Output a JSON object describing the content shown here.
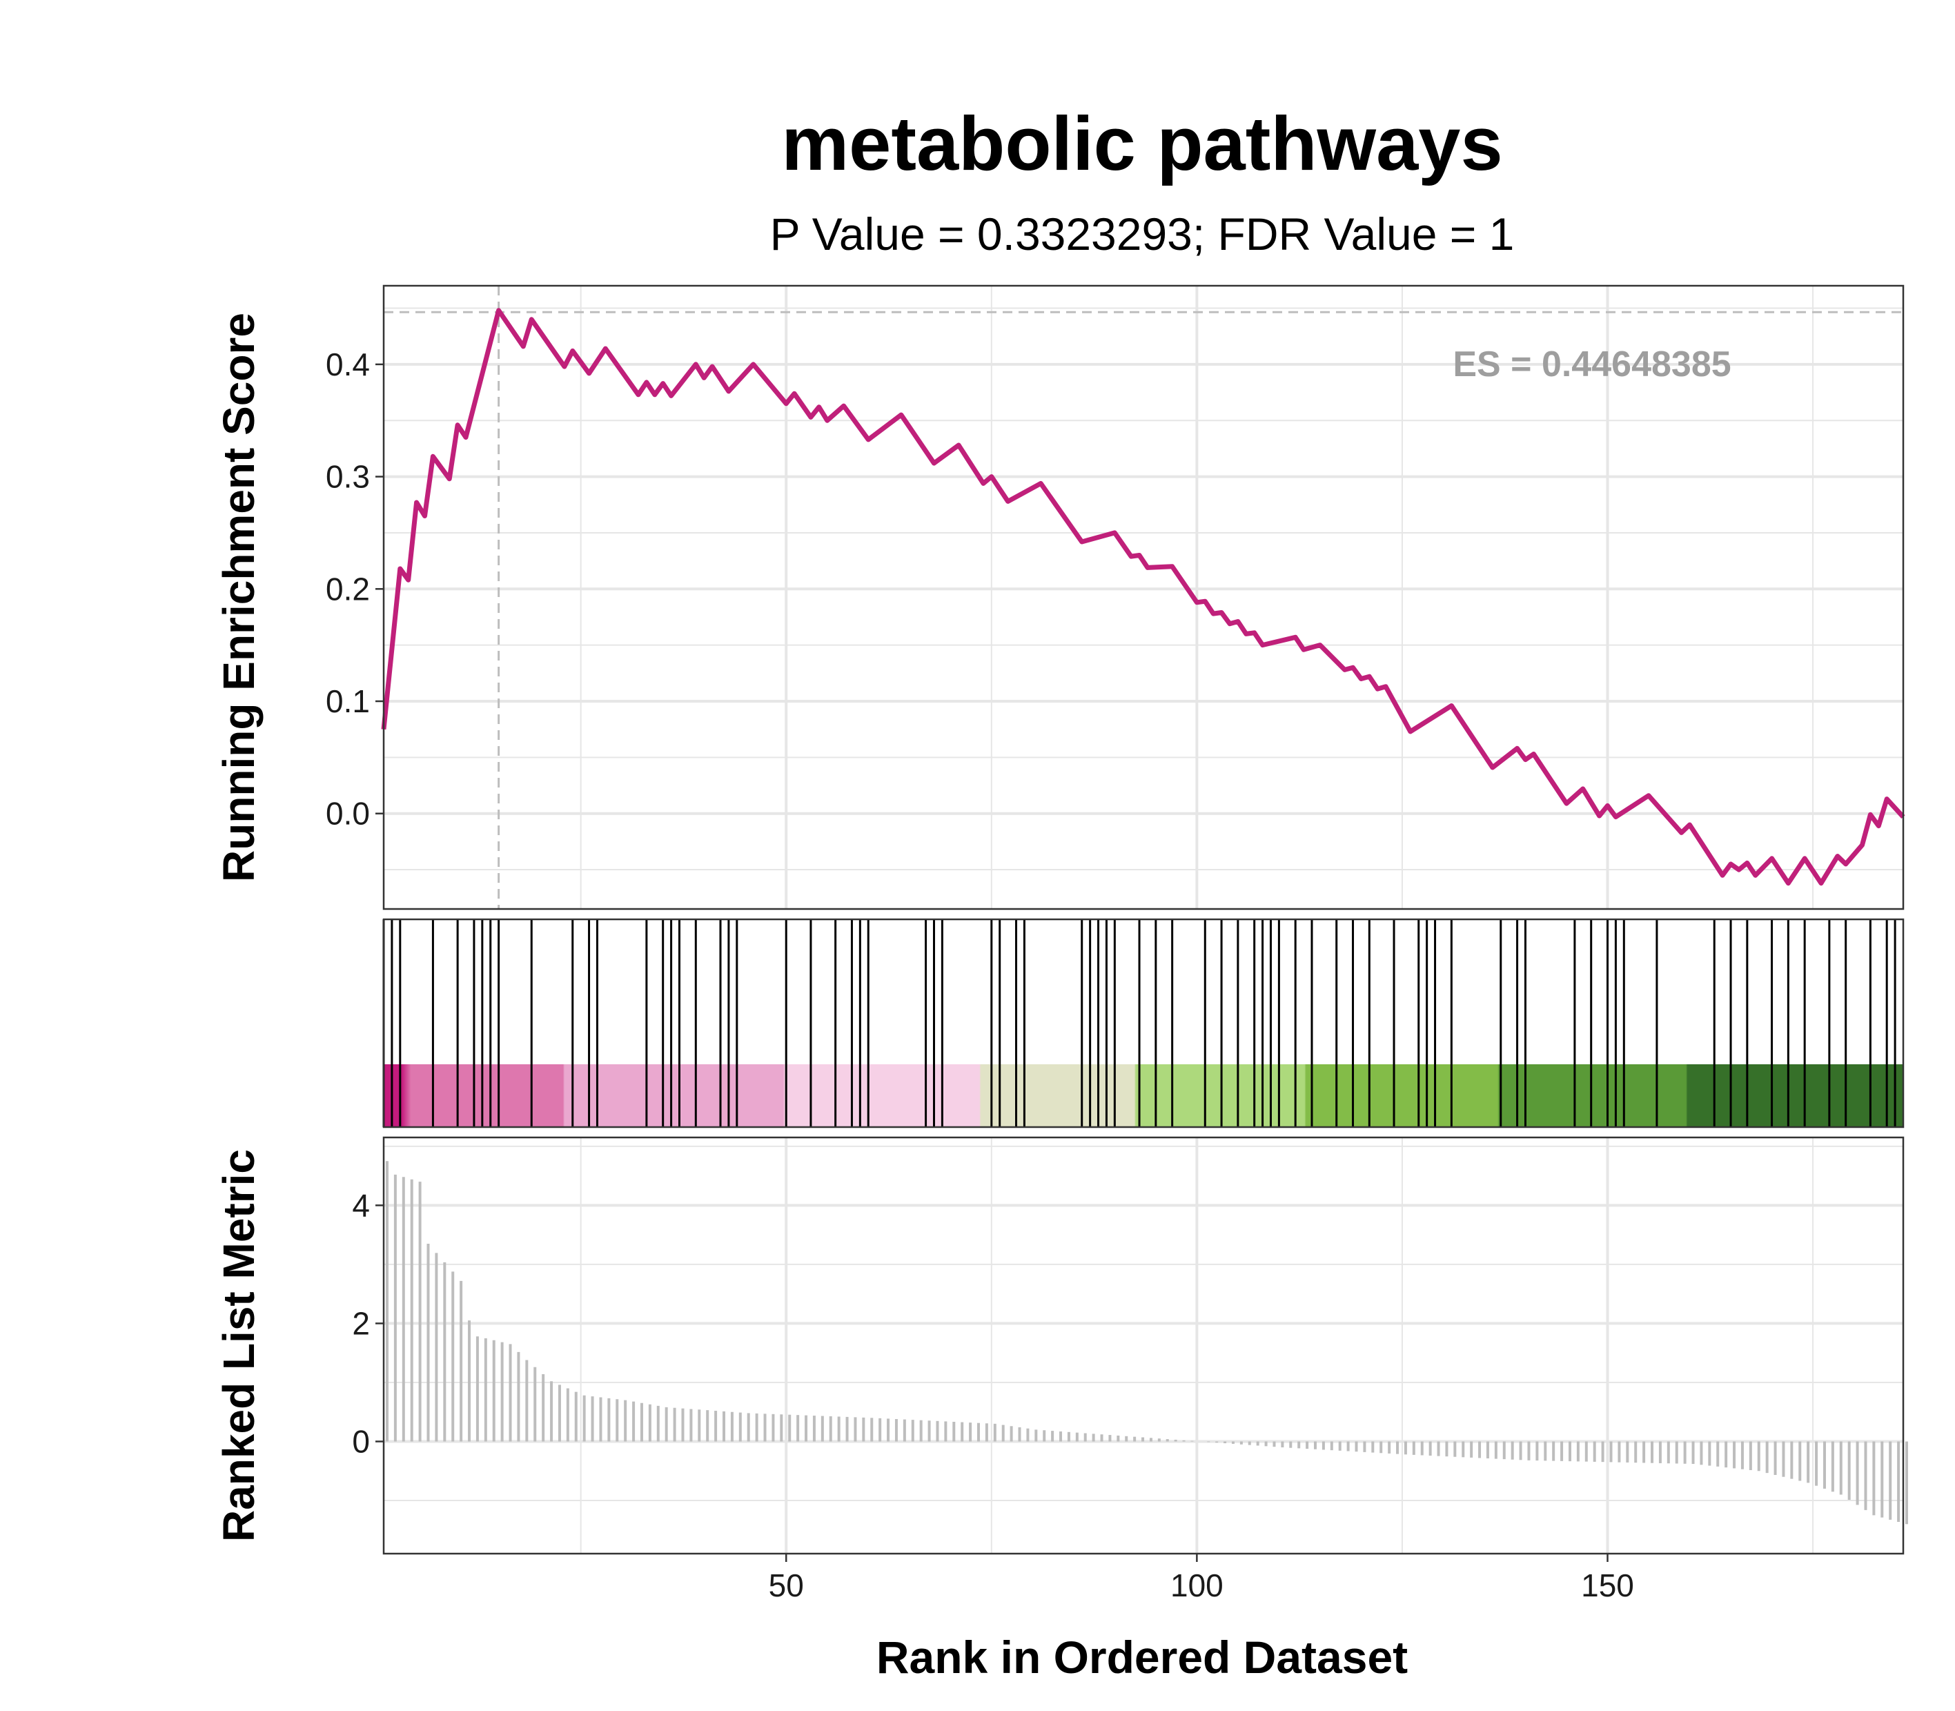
{
  "title": "metabolic pathways",
  "subtitle": "P Value = 0.3323293; FDR Value = 1",
  "es_label": "ES = 0.44648385",
  "colors": {
    "line": "#c0207a",
    "grid": "#e6e6e6",
    "hit": "#000000",
    "metric_bar": "#bdbdbd",
    "es_ref": "#bdbdbd",
    "gradient": [
      "#c51b7d",
      "#de77ae",
      "#eaa8cf",
      "#f6d0e6",
      "#e1e3c6",
      "#add97c",
      "#83bc48",
      "#5a9a37",
      "#367029"
    ]
  },
  "chart_data": [
    {
      "panel": "running-enrichment",
      "type": "line",
      "ylabel": "Running Enrichment Score",
      "xlim": [
        1,
        186
      ],
      "ylim": [
        -0.085,
        0.47
      ],
      "yticks": [
        0.0,
        0.1,
        0.2,
        0.3,
        0.4
      ],
      "ytick_labels": [
        "0.0",
        "0.1",
        "0.2",
        "0.3",
        "0.4"
      ],
      "es": 0.44648385,
      "es_rank": 15,
      "points": [
        [
          1,
          0.075
        ],
        [
          3,
          0.218
        ],
        [
          4,
          0.208
        ],
        [
          5,
          0.277
        ],
        [
          6,
          0.265
        ],
        [
          7,
          0.318
        ],
        [
          9,
          0.298
        ],
        [
          10,
          0.346
        ],
        [
          11,
          0.335
        ],
        [
          15,
          0.448
        ],
        [
          18,
          0.416
        ],
        [
          19,
          0.44
        ],
        [
          23,
          0.398
        ],
        [
          24,
          0.412
        ],
        [
          26,
          0.392
        ],
        [
          28,
          0.414
        ],
        [
          32,
          0.373
        ],
        [
          33,
          0.384
        ],
        [
          34,
          0.373
        ],
        [
          35,
          0.383
        ],
        [
          36,
          0.372
        ],
        [
          39,
          0.4
        ],
        [
          40,
          0.388
        ],
        [
          41,
          0.398
        ],
        [
          43,
          0.376
        ],
        [
          46,
          0.4
        ],
        [
          50,
          0.365
        ],
        [
          51,
          0.374
        ],
        [
          53,
          0.353
        ],
        [
          54,
          0.362
        ],
        [
          55,
          0.35
        ],
        [
          57,
          0.363
        ],
        [
          60,
          0.333
        ],
        [
          64,
          0.355
        ],
        [
          68,
          0.312
        ],
        [
          71,
          0.328
        ],
        [
          74,
          0.294
        ],
        [
          75,
          0.3
        ],
        [
          77,
          0.278
        ],
        [
          81,
          0.294
        ],
        [
          86,
          0.242
        ],
        [
          90,
          0.25
        ],
        [
          92,
          0.229
        ],
        [
          93,
          0.23
        ],
        [
          94,
          0.219
        ],
        [
          97,
          0.22
        ],
        [
          100,
          0.188
        ],
        [
          101,
          0.189
        ],
        [
          102,
          0.178
        ],
        [
          103,
          0.179
        ],
        [
          104,
          0.169
        ],
        [
          105,
          0.171
        ],
        [
          106,
          0.16
        ],
        [
          107,
          0.161
        ],
        [
          108,
          0.15
        ],
        [
          112,
          0.157
        ],
        [
          113,
          0.146
        ],
        [
          115,
          0.15
        ],
        [
          118,
          0.128
        ],
        [
          119,
          0.13
        ],
        [
          120,
          0.12
        ],
        [
          121,
          0.122
        ],
        [
          122,
          0.111
        ],
        [
          123,
          0.113
        ],
        [
          126,
          0.073
        ],
        [
          131,
          0.096
        ],
        [
          136,
          0.041
        ],
        [
          139,
          0.058
        ],
        [
          140,
          0.048
        ],
        [
          141,
          0.053
        ],
        [
          145,
          0.009
        ],
        [
          147,
          0.022
        ],
        [
          149,
          -0.002
        ],
        [
          150,
          0.007
        ],
        [
          151,
          -0.003
        ],
        [
          155,
          0.016
        ],
        [
          159,
          -0.017
        ],
        [
          160,
          -0.01
        ],
        [
          164,
          -0.055
        ],
        [
          165,
          -0.045
        ],
        [
          166,
          -0.05
        ],
        [
          167,
          -0.044
        ],
        [
          168,
          -0.055
        ],
        [
          170,
          -0.04
        ],
        [
          172,
          -0.062
        ],
        [
          174,
          -0.04
        ],
        [
          176,
          -0.062
        ],
        [
          178,
          -0.038
        ],
        [
          179,
          -0.045
        ],
        [
          181,
          -0.028
        ],
        [
          182,
          -0.001
        ],
        [
          183,
          -0.011
        ],
        [
          184,
          0.013
        ],
        [
          186,
          -0.003
        ]
      ]
    },
    {
      "panel": "gene-hits",
      "type": "rug",
      "hits": [
        1,
        2,
        3,
        7,
        10,
        12,
        13,
        14,
        15,
        19,
        24,
        26,
        27,
        33,
        35,
        36,
        37,
        39,
        42,
        43,
        44,
        50,
        53,
        56,
        58,
        59,
        60,
        67,
        68,
        69,
        75,
        76,
        78,
        79,
        86,
        87,
        88,
        89,
        90,
        93,
        95,
        97,
        101,
        103,
        105,
        107,
        108,
        109,
        110,
        112,
        114,
        117,
        119,
        121,
        124,
        127,
        128,
        129,
        131,
        137,
        139,
        140,
        146,
        148,
        150,
        151,
        152,
        156,
        163,
        165,
        167,
        170,
        172,
        174,
        177,
        179,
        182,
        184,
        185
      ]
    },
    {
      "panel": "ranked-list-metric",
      "type": "bar",
      "ylabel": "Ranked List Metric",
      "xlabel": "Rank in Ordered Dataset",
      "xlim": [
        1,
        186
      ],
      "ylim": [
        -1.9,
        5.15
      ],
      "yticks": [
        0,
        2,
        4
      ],
      "ytick_labels": [
        "0",
        "2",
        "4"
      ],
      "xticks": [
        50,
        100,
        150
      ],
      "xtick_labels": [
        "50",
        "100",
        "150"
      ],
      "profile": [
        [
          1,
          4.75
        ],
        [
          2,
          4.52
        ],
        [
          5,
          4.4
        ],
        [
          6,
          3.35
        ],
        [
          10,
          2.72
        ],
        [
          11,
          2.05
        ],
        [
          12,
          1.78
        ],
        [
          16,
          1.65
        ],
        [
          18,
          1.38
        ],
        [
          21,
          1.02
        ],
        [
          25,
          0.78
        ],
        [
          30,
          0.7
        ],
        [
          35,
          0.58
        ],
        [
          45,
          0.48
        ],
        [
          60,
          0.4
        ],
        [
          75,
          0.3
        ],
        [
          80,
          0.2
        ],
        [
          88,
          0.12
        ],
        [
          95,
          0.05
        ],
        [
          100,
          0.0
        ],
        [
          110,
          -0.1
        ],
        [
          125,
          -0.22
        ],
        [
          140,
          -0.32
        ],
        [
          160,
          -0.38
        ],
        [
          168,
          -0.5
        ],
        [
          174,
          -0.7
        ],
        [
          178,
          -0.9
        ],
        [
          182,
          -1.25
        ],
        [
          186,
          -1.4
        ]
      ]
    }
  ]
}
